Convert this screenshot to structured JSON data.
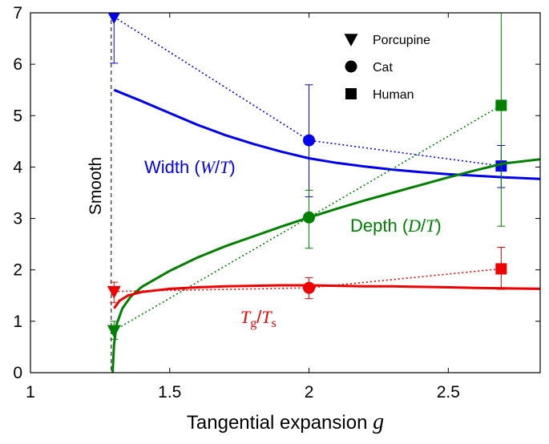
{
  "chart_data": {
    "type": "line",
    "xlabel": "Tangential expansion",
    "xlabel_symbol": "g",
    "xlim": [
      1,
      2.83
    ],
    "ylim": [
      0,
      7
    ],
    "xticks": [
      "1",
      "1.5",
      "2",
      "2.5"
    ],
    "xtick_values": [
      1,
      1.5,
      2,
      2.5
    ],
    "yticks": [
      "0",
      "1",
      "2",
      "3",
      "4",
      "5",
      "6",
      "7"
    ],
    "ytick_values": [
      0,
      1,
      2,
      3,
      4,
      5,
      6,
      7
    ],
    "annotation_smooth": "Smooth",
    "smooth_x": 1.29,
    "legend": {
      "placement": "top-right",
      "entries": [
        {
          "label": "Porcupine",
          "marker": "triangle-down"
        },
        {
          "label": "Cat",
          "marker": "circle"
        },
        {
          "label": "Human",
          "marker": "square"
        }
      ]
    },
    "series": [
      {
        "label_parts": [
          "Width (",
          "W",
          "/",
          "T",
          ")"
        ],
        "color": "#0000ee",
        "curve": {
          "x": [
            1.3,
            1.4,
            1.5,
            1.6,
            1.7,
            1.8,
            1.9,
            2.0,
            2.1,
            2.2,
            2.3,
            2.4,
            2.5,
            2.6,
            2.7,
            2.83
          ],
          "y": [
            5.5,
            5.28,
            5.05,
            4.82,
            4.62,
            4.45,
            4.3,
            4.17,
            4.08,
            4.01,
            3.95,
            3.9,
            3.86,
            3.83,
            3.8,
            3.77
          ]
        },
        "points": [
          {
            "x": 1.3,
            "y": 6.92,
            "marker": "triangle-down",
            "err_low": 6.02,
            "err_high": 7.0
          },
          {
            "x": 2.0,
            "y": 4.52,
            "marker": "circle",
            "err_low": 3.42,
            "err_high": 5.6
          },
          {
            "x": 2.69,
            "y": 4.02,
            "marker": "square",
            "err_low": 3.6,
            "err_high": 4.42
          }
        ]
      },
      {
        "label_parts": [
          "Depth (",
          "D",
          "/",
          "T",
          ")"
        ],
        "color": "#008000",
        "curve": {
          "x": [
            1.295,
            1.3,
            1.31,
            1.33,
            1.36,
            1.4,
            1.5,
            1.6,
            1.7,
            1.8,
            1.9,
            2.0,
            2.1,
            2.2,
            2.3,
            2.4,
            2.5,
            2.6,
            2.7,
            2.83
          ],
          "y": [
            0.0,
            0.55,
            0.95,
            1.25,
            1.48,
            1.67,
            1.98,
            2.24,
            2.46,
            2.65,
            2.84,
            3.02,
            3.19,
            3.35,
            3.5,
            3.65,
            3.8,
            3.94,
            4.07,
            4.15
          ]
        },
        "points": [
          {
            "x": 1.3,
            "y": 0.82,
            "marker": "triangle-down",
            "err_low": 0.65,
            "err_high": 1.0
          },
          {
            "x": 2.0,
            "y": 3.02,
            "marker": "circle",
            "err_low": 2.42,
            "err_high": 3.55
          },
          {
            "x": 2.69,
            "y": 5.2,
            "marker": "square",
            "err_low": 2.85,
            "err_high": 7.0
          }
        ]
      },
      {
        "label_parts": [
          "T",
          "g",
          "/",
          "T",
          "s"
        ],
        "color": "#ee0000",
        "curve": {
          "x": [
            1.3,
            1.32,
            1.35,
            1.4,
            1.5,
            1.6,
            1.7,
            1.8,
            1.9,
            2.0,
            2.1,
            2.2,
            2.3,
            2.4,
            2.5,
            2.6,
            2.7,
            2.83
          ],
          "y": [
            1.25,
            1.4,
            1.5,
            1.57,
            1.63,
            1.66,
            1.68,
            1.69,
            1.7,
            1.7,
            1.69,
            1.68,
            1.68,
            1.67,
            1.66,
            1.65,
            1.64,
            1.63
          ]
        },
        "points": [
          {
            "x": 1.3,
            "y": 1.58,
            "marker": "triangle-down",
            "err_low": 1.36,
            "err_high": 1.76
          },
          {
            "x": 2.0,
            "y": 1.65,
            "marker": "circle",
            "err_low": 1.44,
            "err_high": 1.85
          },
          {
            "x": 2.69,
            "y": 2.02,
            "marker": "square",
            "err_low": 1.62,
            "err_high": 2.44
          }
        ]
      }
    ]
  }
}
